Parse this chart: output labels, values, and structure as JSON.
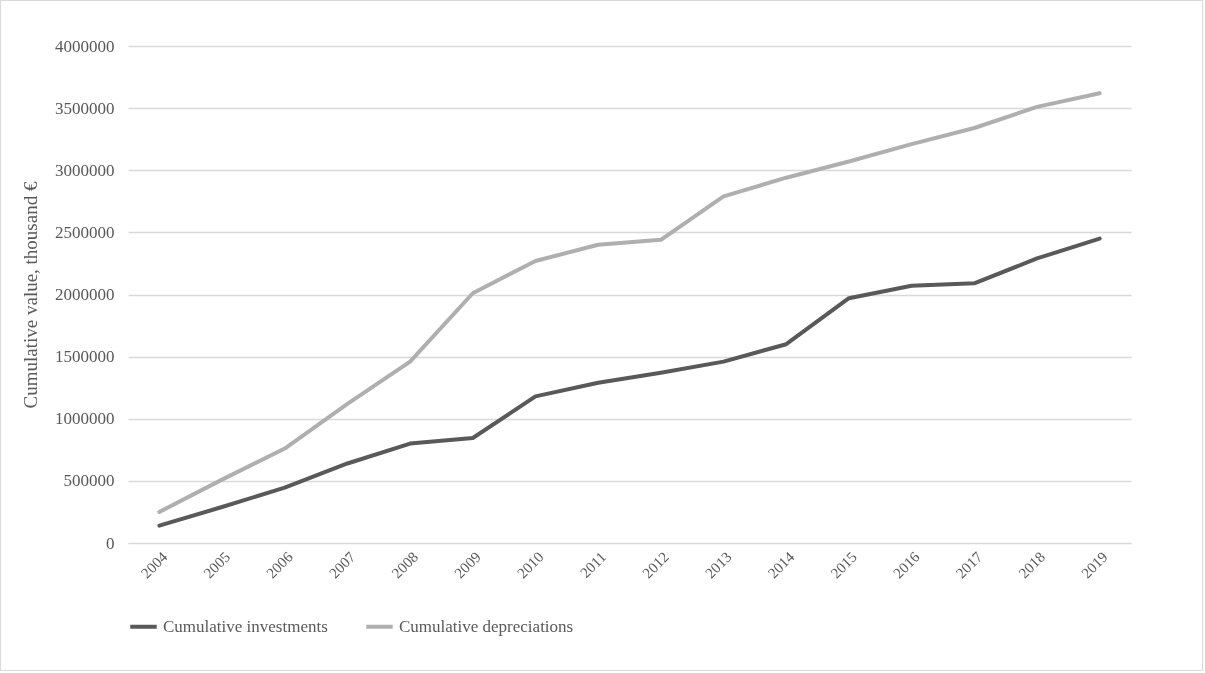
{
  "chart_data": {
    "type": "line",
    "ylabel": "Cumulative value, thousand €",
    "categories": [
      "2004",
      "2005",
      "2006",
      "2007",
      "2008",
      "2009",
      "2010",
      "2011",
      "2012",
      "2013",
      "2014",
      "2015",
      "2016",
      "2017",
      "2018",
      "2019"
    ],
    "series": [
      {
        "name": "Cumulative investments",
        "color": "#595959",
        "values": [
          140000,
          290000,
          445000,
          640000,
          800000,
          845000,
          1180000,
          1290000,
          1370000,
          1460000,
          1600000,
          1970000,
          2070000,
          2090000,
          2290000,
          2450000
        ]
      },
      {
        "name": "Cumulative depreciations",
        "color": "#afafaf",
        "values": [
          250000,
          510000,
          760000,
          1120000,
          1460000,
          2010000,
          2270000,
          2400000,
          2440000,
          2790000,
          2940000,
          3070000,
          3210000,
          3340000,
          3510000,
          3620000
        ]
      }
    ],
    "ylim": [
      0,
      4000000
    ],
    "yticks": [
      0,
      500000,
      1000000,
      1500000,
      2000000,
      2500000,
      3000000,
      3500000,
      4000000
    ],
    "grid": "y",
    "legend": "bottom",
    "marker": "none",
    "line_style": "solid"
  }
}
